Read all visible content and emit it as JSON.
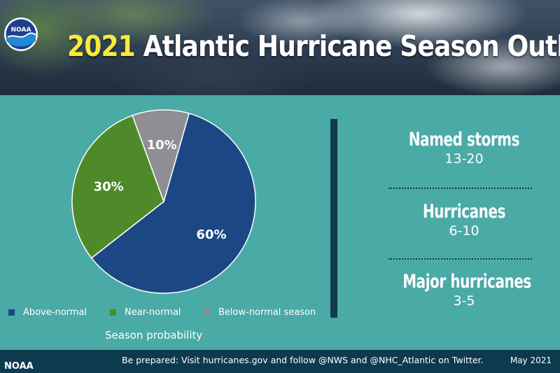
{
  "header": {
    "title_year": "2021",
    "title_text": "Atlantic Hurricane Season Outlook",
    "logo_text": "NOAA"
  },
  "chart_data": {
    "type": "pie",
    "title": "",
    "caption": "Season probability",
    "slices": [
      {
        "label": "Above-normal",
        "value": 60,
        "display": "60%",
        "color": "#1b4884"
      },
      {
        "label": "Near-normal",
        "value": 30,
        "display": "30%",
        "color": "#4f8a2a"
      },
      {
        "label": "Below-normal season",
        "value": 10,
        "display": "10%",
        "color": "#8e8f92"
      }
    ],
    "legend_position": "bottom"
  },
  "stats": [
    {
      "label": "Named storms",
      "value": "13-20"
    },
    {
      "label": "Hurricanes",
      "value": "6-10"
    },
    {
      "label": "Major hurricanes",
      "value": "3-5"
    }
  ],
  "footer": {
    "brand": "NOAA",
    "text": "Be prepared: Visit hurricanes.gov and follow @NWS and @NHC_Atlantic on Twitter.",
    "date": "May 2021"
  },
  "colors": {
    "background": "#4aaaa6",
    "footer": "#0e3a4f",
    "accent_year": "#f7ea3a"
  }
}
